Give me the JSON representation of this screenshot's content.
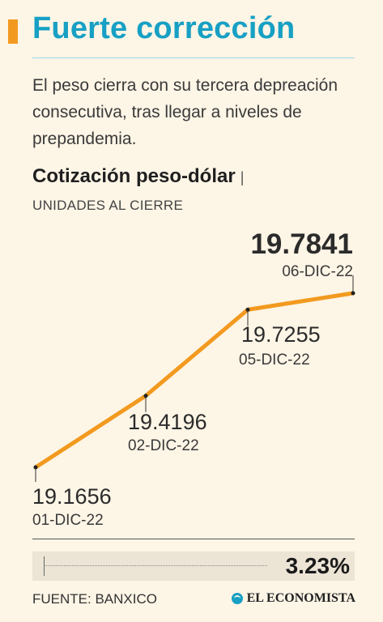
{
  "header": {
    "title": "Fuerte corrección",
    "subtitle": "El peso cierra con su tercera depreación consecutiva, tras llegar a niveles de prepandemia."
  },
  "chart_data": {
    "type": "line",
    "title": "Cotización peso-dólar",
    "subtitle": "UNIDADES AL CIERRE",
    "categories": [
      "01-DIC-22",
      "02-DIC-22",
      "05-DIC-22",
      "06-DIC-22"
    ],
    "series": [
      {
        "values": [
          19.1656,
          19.4196,
          19.7255,
          19.7841
        ]
      }
    ],
    "value_labels": [
      "19.1656",
      "19.4196",
      "19.7255",
      "19.7841"
    ],
    "line_color": "#f29a1f",
    "grid": false
  },
  "footer": {
    "change_pct": "3.23%",
    "source": "FUENTE: BANXICO",
    "brand": "EL ECONOMISTA"
  },
  "colors": {
    "accent": "#f29a1f",
    "title": "#17a0c4",
    "background": "#fdf5e6"
  }
}
